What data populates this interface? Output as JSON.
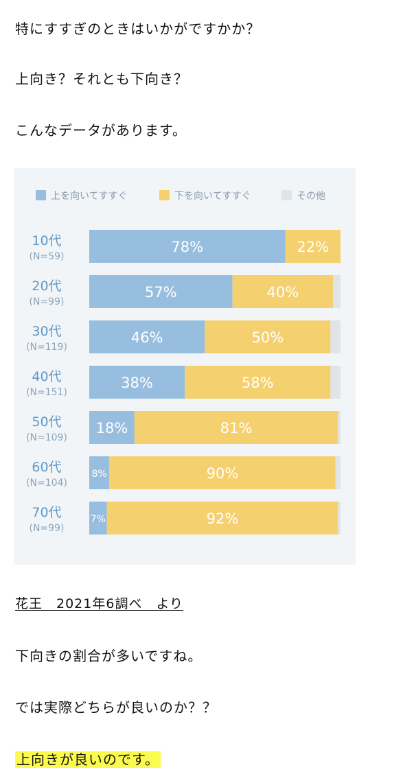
{
  "paragraphs": {
    "p1": "特にすすぎのときはいかがですかか？",
    "p2": "上向き？それとも下向き？",
    "p3": "こんなデータがあります。",
    "source": "花王　2021年6調べ　より",
    "p4": "下向きの割合が多いですね。",
    "p5": "では実際どちらが良いのか？？",
    "p6": "上向きが良いのです。"
  },
  "colors": {
    "up": "#98bedf",
    "down": "#f5d06f",
    "other": "#dfe4e9",
    "highlight": "#fbfa4e"
  },
  "chart_data": {
    "type": "bar",
    "stacked": true,
    "orientation": "horizontal",
    "legend_position": "top",
    "categories": [
      "10代",
      "20代",
      "30代",
      "40代",
      "50代",
      "60代",
      "70代"
    ],
    "sample_sizes": [
      "(N=59)",
      "(N=99)",
      "(N=119)",
      "(N=151)",
      "(N=109)",
      "(N=104)",
      "(N=99)"
    ],
    "series": [
      {
        "name": "上を向いてすすぐ",
        "values": [
          78,
          57,
          46,
          38,
          18,
          8,
          7
        ]
      },
      {
        "name": "下を向いてすすぐ",
        "values": [
          22,
          40,
          50,
          58,
          81,
          90,
          92
        ]
      },
      {
        "name": "その他",
        "values": [
          0,
          3,
          4,
          4,
          1,
          2,
          1
        ]
      }
    ],
    "value_labels": {
      "up": [
        "78%",
        "57%",
        "46%",
        "38%",
        "18%",
        "8%",
        "7%"
      ],
      "down": [
        "22%",
        "40%",
        "50%",
        "58%",
        "81%",
        "90%",
        "92%"
      ]
    },
    "xlim": [
      0,
      100
    ]
  }
}
